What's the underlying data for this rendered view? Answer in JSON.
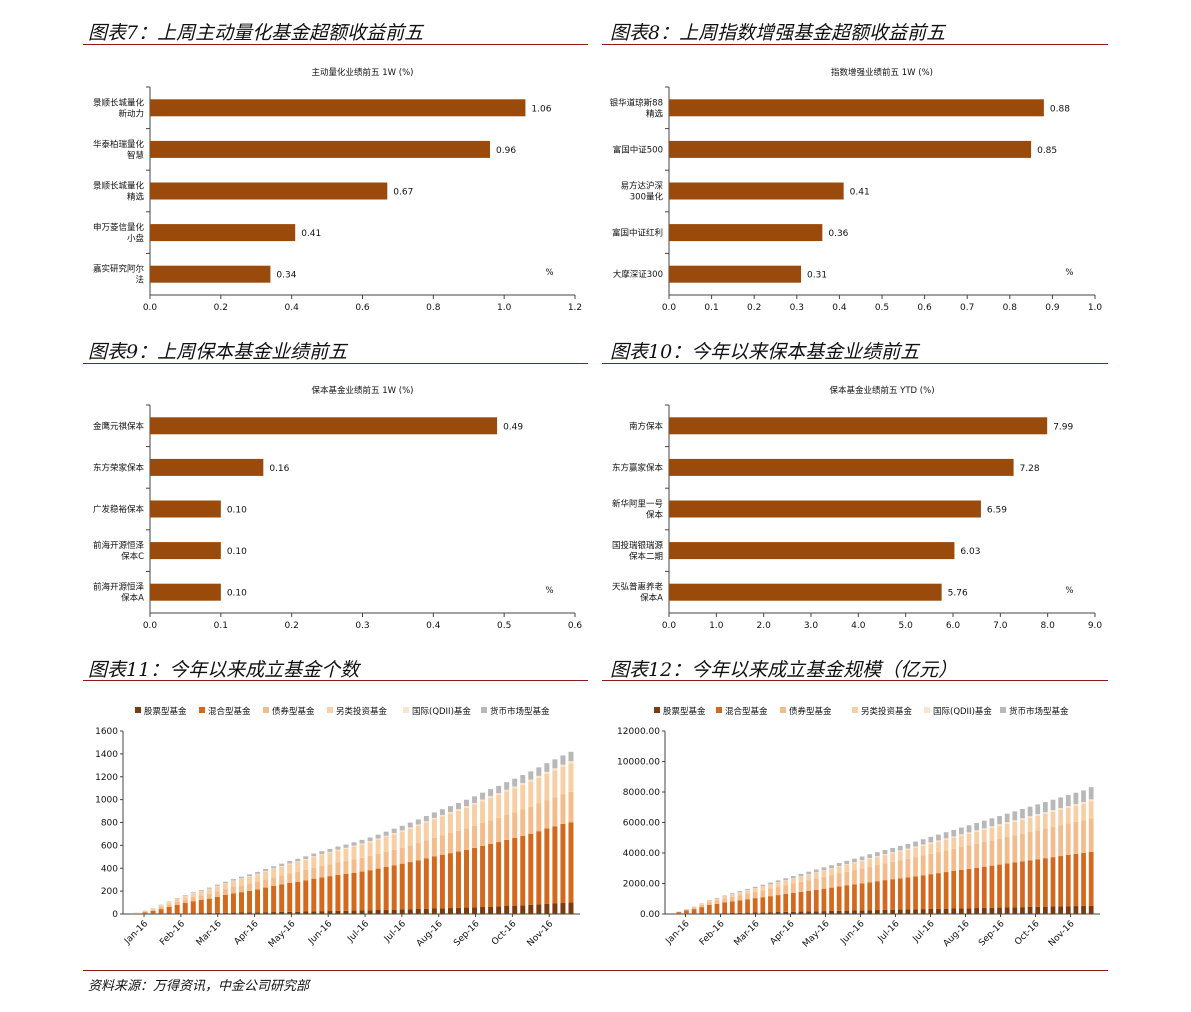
{
  "headings": {
    "f7": "图表7：上周主动量化基金超额收益前五",
    "f8": "图表8：上周指数增强基金超额收益前五",
    "f9": "图表9：上周保本基金业绩前五",
    "f10": "图表10：今年以来保本基金业绩前五",
    "f11": "图表11：今年以来成立基金个数",
    "f12": "图表12：今年以来成立基金规模（亿元）"
  },
  "source": "资料来源：万得资讯，中金公司研究部",
  "colors": {
    "bar": "#9a4a0b",
    "rule": "#8b1a1a",
    "stock": "#7a3a12",
    "hybrid": "#d2691e",
    "bond": "#f3bc8c",
    "other": "#f7cfa6",
    "qdii": "#fbe3cc",
    "money": "#b8b8b8"
  },
  "chart_data": [
    {
      "id": "f7",
      "type": "bar",
      "orientation": "horizontal",
      "title": "主动量化业绩前五 1W (%)",
      "categories": [
        "景顺长城量化\n新动力",
        "华泰柏瑞量化\n智慧",
        "景顺长城量化\n精选",
        "申万菱信量化\n小盘",
        "嘉实研究阿尔\n法"
      ],
      "values": [
        1.06,
        0.96,
        0.67,
        0.41,
        0.34
      ],
      "value_labels": [
        "1.06",
        "0.96",
        "0.67",
        "0.41",
        "0.34"
      ],
      "xlim": [
        0,
        1.2
      ],
      "ticks": [
        "0.0",
        "0.2",
        "0.4",
        "0.6",
        "0.8",
        "1.0",
        "1.2"
      ],
      "unit": "%"
    },
    {
      "id": "f8",
      "type": "bar",
      "orientation": "horizontal",
      "title": "指数增强业绩前五 1W (%)",
      "categories": [
        "银华道琼斯88\n精选",
        "富国中证500",
        "易方达沪深\n300量化",
        "富国中证红利",
        "大摩深证300"
      ],
      "values": [
        0.88,
        0.85,
        0.41,
        0.36,
        0.31
      ],
      "value_labels": [
        "0.88",
        "0.85",
        "0.41",
        "0.36",
        "0.31"
      ],
      "xlim": [
        0,
        1.0
      ],
      "ticks": [
        "0.0",
        "0.1",
        "0.2",
        "0.3",
        "0.4",
        "0.5",
        "0.6",
        "0.7",
        "0.8",
        "0.9",
        "1.0"
      ],
      "unit": "%"
    },
    {
      "id": "f9",
      "type": "bar",
      "orientation": "horizontal",
      "title": "保本基金业绩前五 1W (%)",
      "categories": [
        "金鹰元祺保本",
        "东方荣家保本",
        "广发稳裕保本",
        "前海开源恒泽\n保本C",
        "前海开源恒泽\n保本A"
      ],
      "values": [
        0.49,
        0.16,
        0.1,
        0.1,
        0.1
      ],
      "value_labels": [
        "0.49",
        "0.16",
        "0.10",
        "0.10",
        "0.10"
      ],
      "xlim": [
        0,
        0.6
      ],
      "ticks": [
        "0.0",
        "0.1",
        "0.2",
        "0.3",
        "0.4",
        "0.5",
        "0.6"
      ],
      "unit": "%"
    },
    {
      "id": "f10",
      "type": "bar",
      "orientation": "horizontal",
      "title": "保本基金业绩前五 YTD (%)",
      "categories": [
        "南方保本",
        "东方赢家保本",
        "新华阿里一号\n保本",
        "国投瑞银瑞源\n保本二期",
        "天弘普惠养老\n保本A"
      ],
      "values": [
        7.99,
        7.28,
        6.59,
        6.03,
        5.76
      ],
      "value_labels": [
        "7.99",
        "7.28",
        "6.59",
        "6.03",
        "5.76"
      ],
      "xlim": [
        0,
        9.0
      ],
      "ticks": [
        "0.0",
        "1.0",
        "2.0",
        "3.0",
        "4.0",
        "5.0",
        "6.0",
        "7.0",
        "8.0",
        "9.0"
      ],
      "unit": "%"
    },
    {
      "id": "f11",
      "type": "bar",
      "stacked": true,
      "legend": "top",
      "x_tick_labels": [
        "Jan-16",
        "Feb-16",
        "Mar-16",
        "Apr-16",
        "May-16",
        "Jun-16",
        "Jul-16",
        "Jul-16",
        "Aug-16",
        "Sep-16",
        "Oct-16",
        "Nov-16"
      ],
      "ylim": [
        0,
        1600
      ],
      "y_ticks": [
        "0",
        "200",
        "400",
        "600",
        "800",
        "1000",
        "1200",
        "1400",
        "1600"
      ],
      "series": [
        {
          "name": "股票型基金",
          "values": [
            0,
            1,
            2,
            3,
            4,
            5,
            6,
            7,
            8,
            9,
            10,
            11,
            12,
            13,
            14,
            15,
            16,
            17,
            18,
            19,
            20,
            22,
            24,
            25,
            26,
            27,
            28,
            30,
            31,
            33,
            35,
            36,
            38,
            40,
            42,
            44,
            46,
            48,
            50,
            52,
            54,
            56,
            58,
            61,
            64,
            67,
            70,
            73,
            76,
            80,
            84,
            88,
            92,
            96,
            100
          ]
        },
        {
          "name": "混合型基金",
          "values": [
            6,
            14,
            24,
            40,
            58,
            75,
            90,
            105,
            115,
            125,
            140,
            155,
            168,
            178,
            188,
            200,
            215,
            228,
            240,
            252,
            262,
            272,
            285,
            295,
            305,
            315,
            322,
            330,
            340,
            350,
            362,
            375,
            388,
            400,
            412,
            425,
            440,
            455,
            468,
            480,
            492,
            505,
            520,
            535,
            550,
            562,
            578,
            592,
            608,
            622,
            640,
            660,
            675,
            692,
            700
          ]
        },
        {
          "name": "债券型基金",
          "values": [
            4,
            8,
            12,
            18,
            22,
            28,
            32,
            36,
            40,
            44,
            48,
            52,
            56,
            60,
            64,
            68,
            72,
            76,
            80,
            84,
            88,
            92,
            96,
            100,
            104,
            108,
            112,
            116,
            120,
            124,
            128,
            132,
            136,
            140,
            146,
            152,
            158,
            164,
            170,
            176,
            182,
            188,
            194,
            200,
            206,
            212,
            218,
            224,
            230,
            236,
            242,
            248,
            254,
            260,
            268
          ]
        },
        {
          "name": "另类投资基金",
          "values": [
            2,
            6,
            10,
            16,
            20,
            24,
            28,
            32,
            36,
            40,
            44,
            48,
            52,
            56,
            60,
            64,
            68,
            72,
            76,
            80,
            84,
            88,
            92,
            96,
            100,
            104,
            108,
            112,
            116,
            120,
            125,
            130,
            135,
            140,
            145,
            150,
            155,
            160,
            165,
            170,
            175,
            180,
            185,
            190,
            195,
            200,
            205,
            210,
            215,
            220,
            225,
            230,
            235,
            240,
            250
          ]
        },
        {
          "name": "国际(QDII)基金",
          "values": [
            0,
            1,
            1,
            1,
            2,
            2,
            2,
            3,
            3,
            3,
            4,
            4,
            4,
            5,
            5,
            5,
            6,
            6,
            6,
            7,
            7,
            7,
            8,
            8,
            8,
            9,
            9,
            9,
            10,
            10,
            10,
            11,
            11,
            11,
            12,
            12,
            12,
            13,
            13,
            13,
            14,
            14,
            14,
            15,
            15,
            15,
            16,
            16,
            16,
            17,
            17,
            17,
            18,
            18,
            18
          ]
        },
        {
          "name": "货币市场型基金",
          "values": [
            0,
            1,
            2,
            3,
            4,
            5,
            6,
            7,
            8,
            10,
            11,
            12,
            13,
            14,
            15,
            16,
            17,
            18,
            20,
            21,
            22,
            23,
            24,
            25,
            26,
            27,
            28,
            30,
            31,
            32,
            34,
            36,
            38,
            40,
            42,
            44,
            46,
            48,
            50,
            52,
            54,
            56,
            58,
            60,
            62,
            64,
            66,
            68,
            70,
            72,
            74,
            76,
            78,
            80,
            82
          ]
        }
      ]
    },
    {
      "id": "f12",
      "type": "bar",
      "stacked": true,
      "legend": "top",
      "x_tick_labels": [
        "Jan-16",
        "Feb-16",
        "Mar-16",
        "Apr-16",
        "May-16",
        "Jun-16",
        "Jul-16",
        "Jul-16",
        "Aug-16",
        "Sep-16",
        "Oct-16",
        "Nov-16"
      ],
      "ylim": [
        0,
        12000
      ],
      "y_ticks": [
        "0.00",
        "2000.00",
        "4000.00",
        "6000.00",
        "8000.00",
        "10000.00",
        "12000.00"
      ],
      "series": [
        {
          "name": "股票型基金",
          "values": [
            5,
            10,
            20,
            30,
            40,
            50,
            60,
            70,
            80,
            90,
            100,
            110,
            120,
            130,
            140,
            150,
            160,
            170,
            180,
            190,
            200,
            210,
            220,
            230,
            240,
            250,
            260,
            270,
            280,
            290,
            300,
            310,
            320,
            330,
            340,
            350,
            360,
            370,
            380,
            390,
            400,
            410,
            420,
            430,
            440,
            450,
            460,
            470,
            480,
            490,
            500,
            510,
            520,
            530,
            540
          ]
        },
        {
          "name": "混合型基金",
          "values": [
            120,
            220,
            300,
            420,
            560,
            620,
            700,
            760,
            820,
            880,
            940,
            990,
            1050,
            1110,
            1170,
            1230,
            1290,
            1350,
            1410,
            1470,
            1530,
            1590,
            1650,
            1710,
            1770,
            1830,
            1890,
            1950,
            2000,
            2050,
            2100,
            2160,
            2220,
            2280,
            2340,
            2400,
            2460,
            2520,
            2580,
            2640,
            2700,
            2760,
            2820,
            2880,
            2940,
            3000,
            3060,
            3120,
            3180,
            3240,
            3300,
            3360,
            3420,
            3480,
            3540
          ]
        },
        {
          "name": "债券型基金",
          "values": [
            30,
            60,
            100,
            140,
            180,
            220,
            260,
            300,
            340,
            380,
            420,
            460,
            500,
            540,
            580,
            620,
            660,
            700,
            740,
            780,
            820,
            860,
            900,
            940,
            980,
            1020,
            1060,
            1100,
            1140,
            1180,
            1220,
            1260,
            1300,
            1340,
            1380,
            1420,
            1460,
            1500,
            1540,
            1580,
            1620,
            1660,
            1700,
            1740,
            1780,
            1820,
            1860,
            1900,
            1940,
            1980,
            2020,
            2060,
            2100,
            2140,
            2200
          ]
        },
        {
          "name": "另类投资基金",
          "values": [
            10,
            20,
            40,
            60,
            80,
            100,
            120,
            140,
            160,
            180,
            200,
            220,
            240,
            260,
            280,
            300,
            320,
            340,
            360,
            380,
            400,
            420,
            440,
            460,
            480,
            500,
            520,
            540,
            560,
            580,
            600,
            620,
            640,
            660,
            680,
            700,
            720,
            740,
            760,
            780,
            800,
            820,
            840,
            860,
            880,
            900,
            920,
            940,
            960,
            980,
            1000,
            1020,
            1040,
            1060,
            1100
          ]
        },
        {
          "name": "国际(QDII)基金",
          "values": [
            0,
            5,
            5,
            10,
            10,
            15,
            15,
            20,
            20,
            25,
            25,
            30,
            30,
            35,
            35,
            40,
            40,
            45,
            45,
            50,
            50,
            55,
            55,
            60,
            60,
            65,
            65,
            70,
            70,
            75,
            75,
            80,
            80,
            85,
            85,
            90,
            90,
            95,
            95,
            100,
            100,
            105,
            105,
            110,
            110,
            115,
            115,
            120,
            120,
            125,
            125,
            130,
            130,
            135,
            140
          ]
        },
        {
          "name": "货币市场型基金",
          "values": [
            0,
            10,
            20,
            30,
            40,
            50,
            60,
            70,
            80,
            90,
            100,
            110,
            120,
            130,
            140,
            150,
            160,
            170,
            180,
            190,
            200,
            210,
            220,
            230,
            240,
            250,
            260,
            270,
            280,
            290,
            300,
            320,
            340,
            360,
            380,
            400,
            420,
            440,
            460,
            480,
            500,
            520,
            540,
            560,
            580,
            600,
            620,
            640,
            660,
            680,
            700,
            720,
            740,
            760,
            800
          ]
        }
      ]
    }
  ]
}
